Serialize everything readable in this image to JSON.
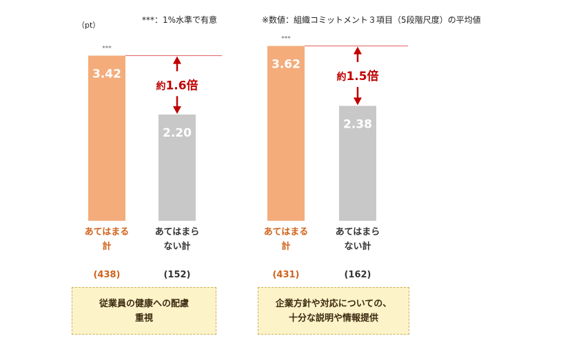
{
  "header": {
    "unit": "（pt）",
    "significance_note": "***：1%水準で有意",
    "value_note": "※数値：組織コミットメント３項目（5段階尺度）の平均値"
  },
  "colors": {
    "orange": "#f4ac7b",
    "gray": "#c8c8c8",
    "accent_text": "#d1621b",
    "ratio_red": "#c00000",
    "ref_line": "#e25a5a"
  },
  "chart_data": [
    {
      "type": "bar",
      "categories": [
        "あてはまる計",
        "あてはまらない計"
      ],
      "category_lines": [
        [
          "あてはまる",
          "計"
        ],
        [
          "あてはまら",
          "ない計"
        ]
      ],
      "values": [
        3.42,
        2.2
      ],
      "value_labels": [
        "3.42",
        "2.20"
      ],
      "counts": [
        "(438)",
        "(152)"
      ],
      "significance": "***",
      "ratio_prefix": "約",
      "ratio_value": "1.6倍",
      "group_label": [
        "従業員の健康への配慮",
        "重視"
      ]
    },
    {
      "type": "bar",
      "categories": [
        "あてはまる計",
        "あてはまらない計"
      ],
      "category_lines": [
        [
          "あてはまる",
          "計"
        ],
        [
          "あてはまら",
          "ない計"
        ]
      ],
      "values": [
        3.62,
        2.38
      ],
      "value_labels": [
        "3.62",
        "2.38"
      ],
      "counts": [
        "(431)",
        "(162)"
      ],
      "significance": "***",
      "ratio_prefix": "約",
      "ratio_value": "1.5倍",
      "group_label": [
        "企業方針や対応についての、",
        "十分な説明や情報提供"
      ]
    }
  ]
}
